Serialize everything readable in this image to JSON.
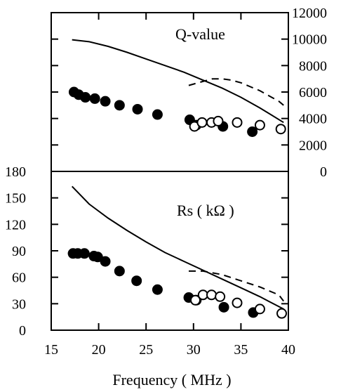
{
  "chart_data": [
    {
      "type": "scatter",
      "panel": "top",
      "annotation": "Q-value",
      "xlim": [
        15,
        40
      ],
      "ylim": [
        0,
        12000
      ],
      "y_axis_side": "right",
      "y_ticks": [
        0,
        2000,
        4000,
        6000,
        8000,
        10000,
        12000
      ],
      "grid": false,
      "series": [
        {
          "style": "filled-circle",
          "x": [
            17.4,
            17.9,
            18.6,
            19.6,
            20.7,
            22.2,
            24.1,
            26.2,
            29.6,
            30.3,
            33.1,
            36.2
          ],
          "y": [
            6000,
            5800,
            5600,
            5500,
            5300,
            5000,
            4700,
            4300,
            3900,
            3500,
            3400,
            3000
          ]
        },
        {
          "style": "open-circle",
          "x": [
            30.1,
            30.9,
            31.9,
            32.6,
            34.6,
            37.0,
            39.2
          ],
          "y": [
            3400,
            3700,
            3700,
            3800,
            3700,
            3500,
            3200
          ]
        },
        {
          "style": "solid-line",
          "x": [
            17.2,
            19.0,
            21.0,
            23.0,
            25.0,
            27.0,
            29.0,
            31.0,
            33.0,
            35.0,
            37.0,
            39.5
          ],
          "y": [
            9950,
            9800,
            9450,
            9000,
            8500,
            8000,
            7500,
            6900,
            6300,
            5600,
            4800,
            3700
          ]
        },
        {
          "style": "dashed-line",
          "x": [
            29.5,
            31.0,
            32.0,
            33.0,
            34.0,
            35.0,
            36.0,
            37.0,
            38.0,
            39.0,
            39.5
          ],
          "y": [
            6500,
            6800,
            7000,
            7000,
            6900,
            6700,
            6400,
            6100,
            5700,
            5300,
            5000
          ]
        }
      ]
    },
    {
      "type": "scatter",
      "panel": "bottom",
      "annotation": "Rs ( kΩ )",
      "xlabel": "Frequency ( MHz )",
      "xlim": [
        15,
        40
      ],
      "x_ticks": [
        15,
        20,
        25,
        30,
        35,
        40
      ],
      "ylim": [
        0,
        180
      ],
      "y_axis_side": "left",
      "y_ticks": [
        0,
        30,
        60,
        90,
        120,
        150,
        180
      ],
      "grid": false,
      "series": [
        {
          "style": "filled-circle",
          "x": [
            17.3,
            17.8,
            18.5,
            19.5,
            19.9,
            20.7,
            22.2,
            24.0,
            26.2,
            29.5,
            30.3,
            33.2,
            36.3
          ],
          "y": [
            87,
            87,
            87,
            84,
            83,
            78,
            67,
            56,
            46,
            37,
            34,
            26,
            20
          ]
        },
        {
          "style": "open-circle",
          "x": [
            30.2,
            31.0,
            31.9,
            32.8,
            34.6,
            37.0,
            39.3
          ],
          "y": [
            34,
            40,
            40,
            38,
            31,
            24,
            19
          ]
        },
        {
          "style": "solid-line",
          "x": [
            17.2,
            19.0,
            21.0,
            23.0,
            25.0,
            27.0,
            29.0,
            31.0,
            33.0,
            35.0,
            37.0,
            39.5
          ],
          "y": [
            163,
            143,
            127,
            113,
            100,
            88,
            78,
            68,
            58,
            48,
            38,
            24
          ]
        },
        {
          "style": "dashed-line",
          "x": [
            29.5,
            31.0,
            33.0,
            35.0,
            37.0,
            39.0,
            39.5
          ],
          "y": [
            67,
            67,
            63,
            56,
            49,
            40,
            33
          ]
        }
      ]
    }
  ]
}
